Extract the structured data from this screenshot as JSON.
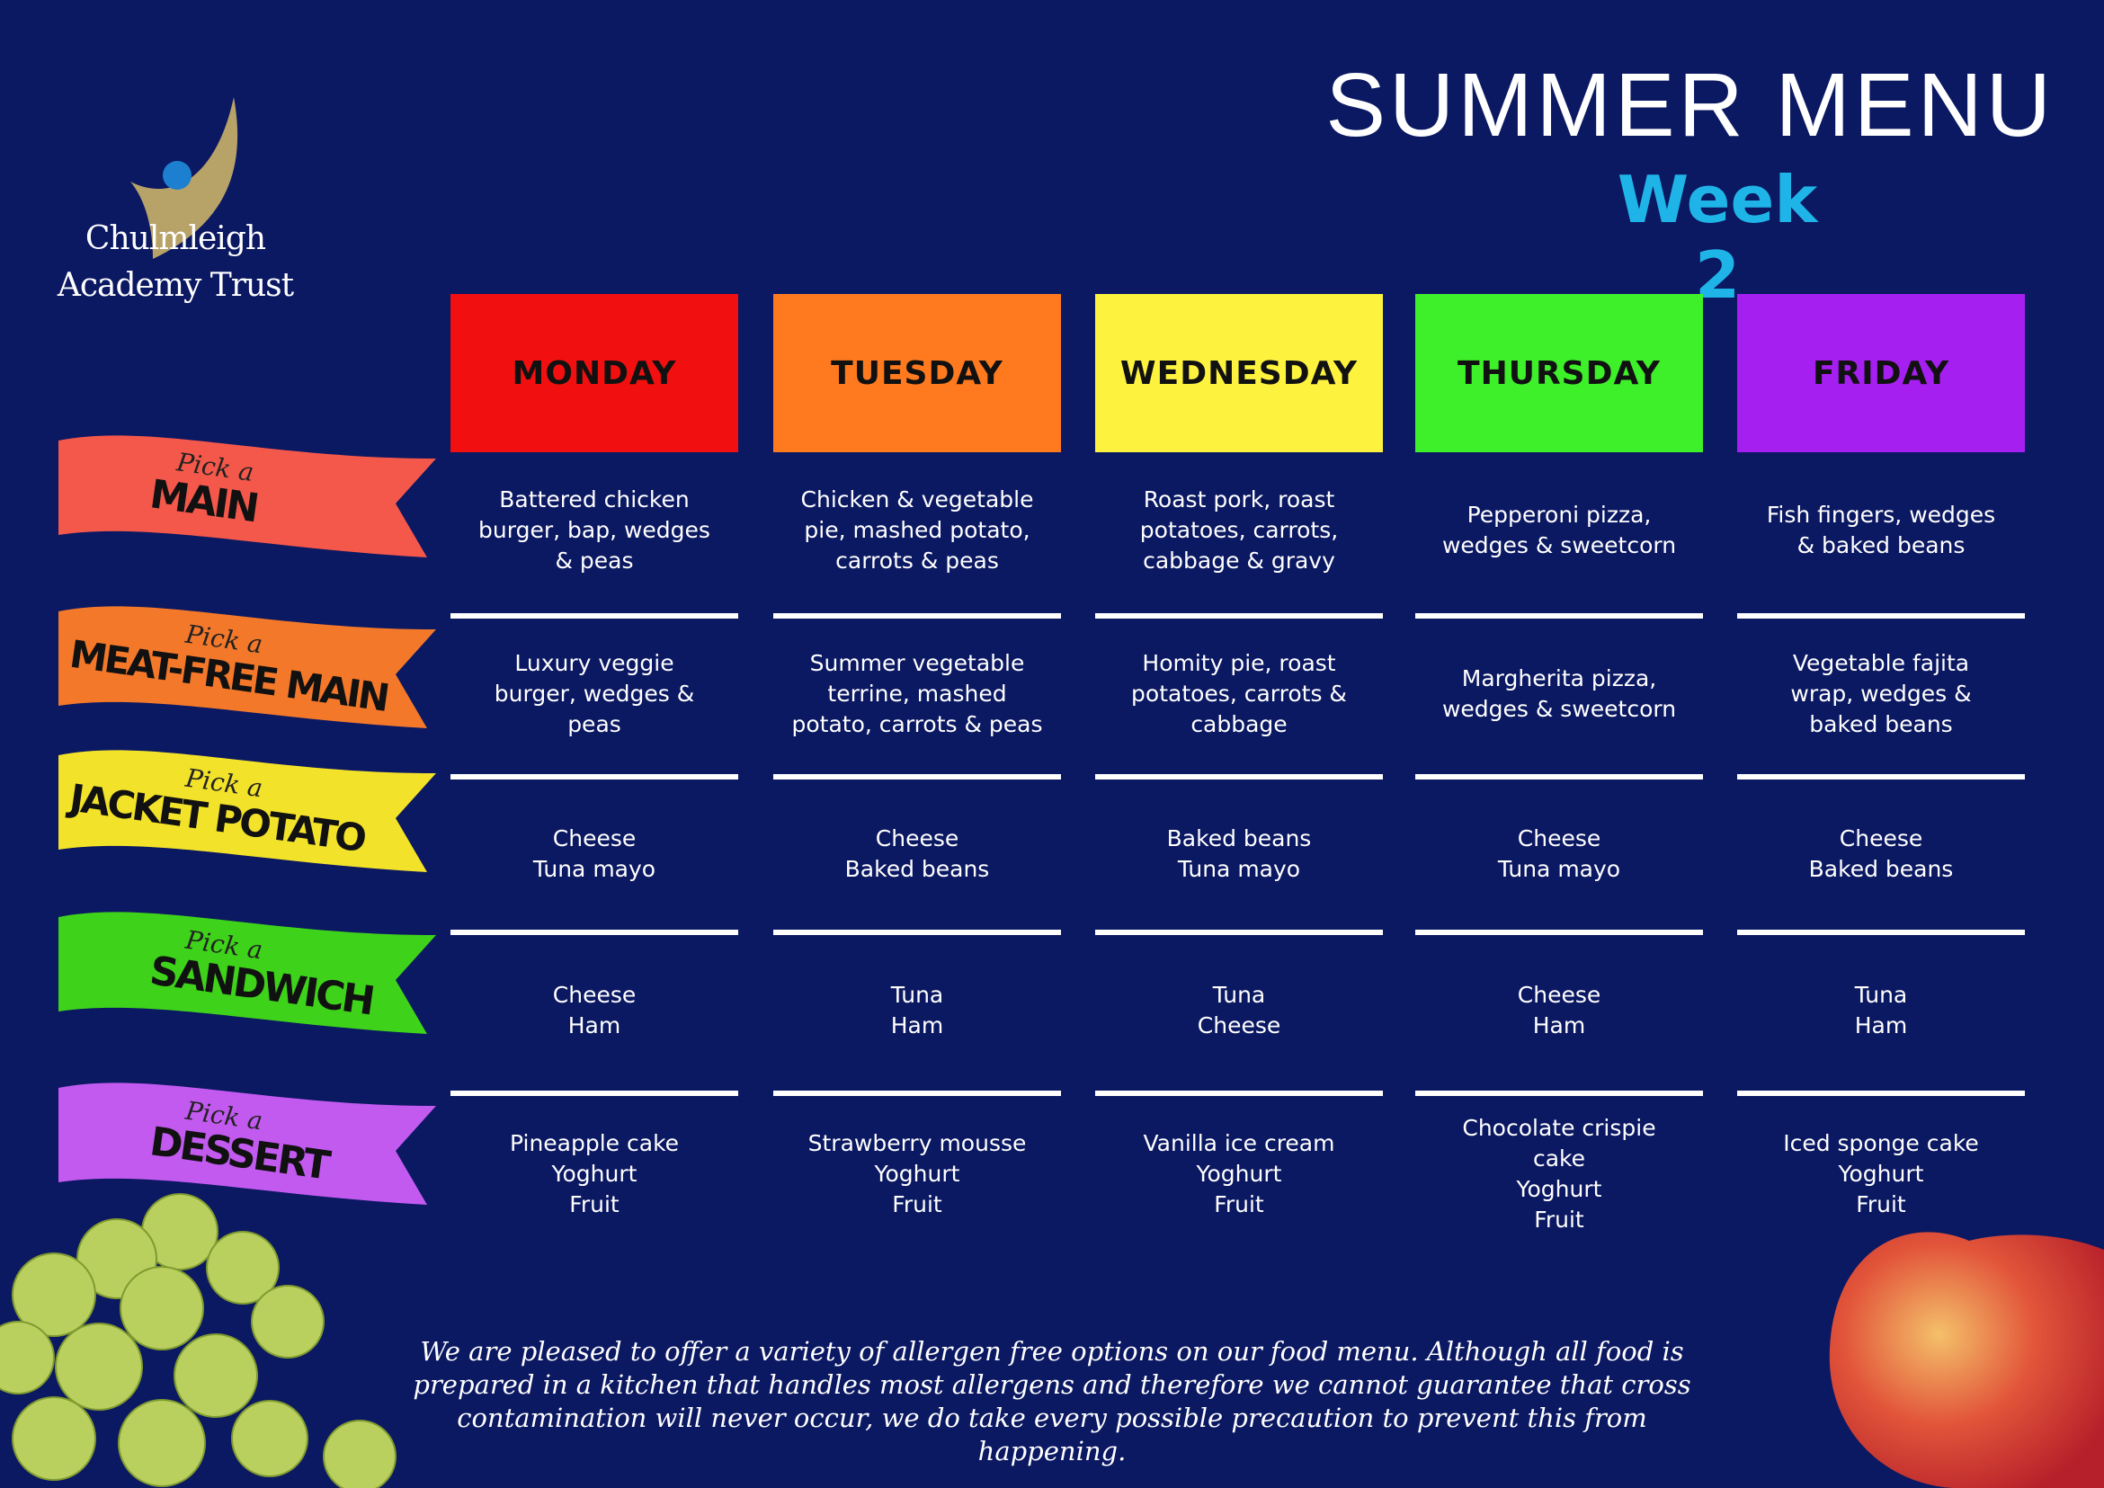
{
  "logo": {
    "line1": "Chulmleigh",
    "line2": "Academy Trust"
  },
  "title": "SUMMER MENU",
  "subtitle": "Week 2",
  "days": [
    {
      "name": "MONDAY",
      "color": "#f20f0f"
    },
    {
      "name": "TUESDAY",
      "color": "#ff7a1f"
    },
    {
      "name": "WEDNESDAY",
      "color": "#fdf33f"
    },
    {
      "name": "THURSDAY",
      "color": "#3ef02a"
    },
    {
      "name": "FRIDAY",
      "color": "#a51ff0"
    }
  ],
  "categories": [
    {
      "pick": "Pick a",
      "name": "MAIN",
      "color": "#f4584a"
    },
    {
      "pick": "Pick a",
      "name": "MEAT-FREE MAIN",
      "color": "#f3782a"
    },
    {
      "pick": "Pick a",
      "name": "JACKET POTATO",
      "color": "#f2e22a"
    },
    {
      "pick": "Pick a",
      "name": "SANDWICH",
      "color": "#3ed21a"
    },
    {
      "pick": "Pick a",
      "name": "DESSERT",
      "color": "#c25af0"
    }
  ],
  "menu": [
    [
      "Battered chicken\nburger, bap, wedges\n& peas",
      "Chicken & vegetable\npie, mashed potato,\ncarrots & peas",
      "Roast pork, roast\npotatoes,  carrots,\ncabbage & gravy",
      "Pepperoni pizza,\nwedges & sweetcorn",
      "Fish fingers, wedges\n& baked beans"
    ],
    [
      "Luxury veggie\nburger, wedges &\npeas",
      "Summer vegetable\nterrine, mashed\npotato, carrots & peas",
      "Homity pie, roast\npotatoes, carrots &\ncabbage",
      "Margherita pizza,\nwedges & sweetcorn",
      "Vegetable fajita\nwrap, wedges &\nbaked beans"
    ],
    [
      "Cheese\nTuna mayo",
      "Cheese\nBaked beans",
      "Baked beans\nTuna mayo",
      "Cheese\nTuna mayo",
      "Cheese\nBaked beans"
    ],
    [
      "Cheese\nHam",
      "Tuna\nHam",
      "Tuna\nCheese",
      "Cheese\nHam",
      "Tuna\nHam"
    ],
    [
      "Pineapple cake\nYoghurt\nFruit",
      "Strawberry mousse\nYoghurt\nFruit",
      "Vanilla ice cream\nYoghurt\nFruit",
      "Chocolate crispie\ncake\nYoghurt\nFruit",
      "Iced sponge cake\nYoghurt\nFruit"
    ]
  ],
  "footer": "We are pleased to offer a variety of allergen free options on our food menu. Although all food is prepared in a kitchen that handles most allergens and therefore we cannot guarantee that cross contamination will never occur, we do take every possible precaution to prevent this from happening."
}
